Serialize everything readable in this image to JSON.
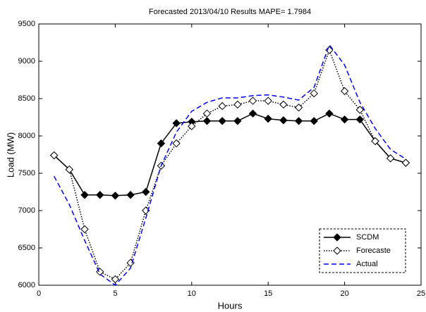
{
  "chart_data": {
    "type": "line",
    "title": "Forecasted 2013/04/10 Results  MAPE= 1.7984",
    "xlabel": "Hours",
    "ylabel": "Load (MW)",
    "x": [
      1,
      2,
      3,
      4,
      5,
      6,
      7,
      8,
      9,
      10,
      11,
      12,
      13,
      14,
      15,
      16,
      17,
      18,
      19,
      20,
      21,
      22,
      23,
      24
    ],
    "series": [
      {
        "name": "SCDM",
        "color": "#000000",
        "dash": "solid",
        "marker": "diamond",
        "values": [
          7740,
          7550,
          7210,
          7210,
          7200,
          7210,
          7250,
          7900,
          8170,
          8190,
          8200,
          8200,
          8200,
          8300,
          8230,
          8210,
          8200,
          8200,
          8300,
          8220,
          8220,
          7930,
          7700,
          7640
        ]
      },
      {
        "name": "Forecaste",
        "color": "#000000",
        "dash": "dotted",
        "marker": "open-diamond",
        "values": [
          7740,
          7550,
          6750,
          6180,
          6080,
          6300,
          7000,
          7600,
          7900,
          8130,
          8300,
          8400,
          8420,
          8470,
          8470,
          8420,
          8380,
          8570,
          9150,
          8600,
          8350,
          7930,
          7700,
          7640
        ]
      },
      {
        "name": "Actual",
        "color": "#0000ff",
        "dash": "dashed",
        "marker": "none",
        "values": [
          7460,
          7080,
          6600,
          6150,
          6000,
          6230,
          6900,
          7600,
          8050,
          8330,
          8450,
          8510,
          8510,
          8540,
          8550,
          8520,
          8480,
          8650,
          9220,
          8950,
          8450,
          8100,
          7820,
          7690
        ]
      }
    ],
    "xlim": [
      0,
      25
    ],
    "xticks": [
      0,
      5,
      10,
      15,
      20,
      25
    ],
    "ylim": [
      6000,
      9500
    ],
    "yticks": [
      6000,
      6500,
      7000,
      7500,
      8000,
      8500,
      9000,
      9500
    ],
    "legend": "lower-right"
  }
}
